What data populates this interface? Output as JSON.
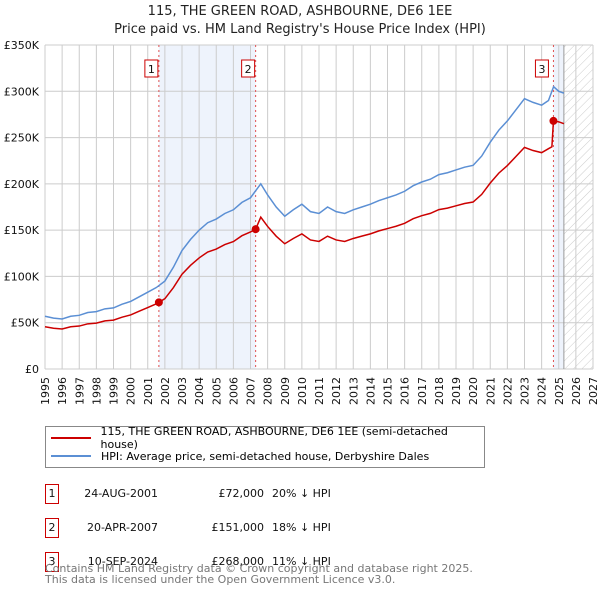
{
  "title": "115, THE GREEN ROAD, ASHBOURNE, DE6 1EE",
  "subtitle": "Price paid vs. HM Land Registry's House Price Index (HPI)",
  "chart_data": {
    "type": "line",
    "ylim": [
      0,
      350000
    ],
    "xlim": [
      1995,
      2027
    ],
    "yticks": [
      {
        "v": 0,
        "label": "£0"
      },
      {
        "v": 50000,
        "label": "£50K"
      },
      {
        "v": 100000,
        "label": "£100K"
      },
      {
        "v": 150000,
        "label": "£150K"
      },
      {
        "v": 200000,
        "label": "£200K"
      },
      {
        "v": 250000,
        "label": "£250K"
      },
      {
        "v": 300000,
        "label": "£300K"
      },
      {
        "v": 350000,
        "label": "£350K"
      }
    ],
    "xticks": [
      "1995",
      "1996",
      "1997",
      "1998",
      "1999",
      "2000",
      "2001",
      "2002",
      "2003",
      "2004",
      "2005",
      "2006",
      "2007",
      "2008",
      "2009",
      "2010",
      "2011",
      "2012",
      "2013",
      "2014",
      "2015",
      "2016",
      "2017",
      "2018",
      "2019",
      "2020",
      "2021",
      "2022",
      "2023",
      "2024",
      "2025",
      "2026",
      "2027"
    ],
    "forecast_start": 2025.3,
    "series": [
      {
        "name": "115, THE GREEN ROAD, ASHBOURNE, DE6 1EE (semi-detached house)",
        "color": "#cc0000",
        "x": [
          1995,
          1995.5,
          1996,
          1996.5,
          1997,
          1997.5,
          1998,
          1998.5,
          1999,
          1999.5,
          2000,
          2000.5,
          2001,
          2001.5,
          2001.65,
          2002,
          2002.5,
          2003,
          2003.5,
          2004,
          2004.5,
          2005,
          2005.5,
          2006,
          2006.5,
          2007,
          2007.3,
          2007.6,
          2008,
          2008.5,
          2009,
          2009.5,
          2010,
          2010.5,
          2011,
          2011.5,
          2012,
          2012.5,
          2013,
          2013.5,
          2014,
          2014.5,
          2015,
          2015.5,
          2016,
          2016.5,
          2017,
          2017.5,
          2018,
          2018.5,
          2019,
          2019.5,
          2020,
          2020.5,
          2021,
          2021.5,
          2022,
          2022.5,
          2023,
          2023.5,
          2024,
          2024.4,
          2024.6,
          2024.69,
          2025,
          2025.3
        ],
        "y": [
          45600,
          44000,
          43200,
          45600,
          46400,
          48800,
          49600,
          52000,
          52800,
          56000,
          58400,
          62400,
          66400,
          70400,
          72000,
          76000,
          88000,
          102400,
          112000,
          120000,
          126400,
          129600,
          134400,
          137600,
          144000,
          148000,
          151000,
          164000,
          154000,
          143500,
          135300,
          141000,
          146000,
          139400,
          137800,
          143500,
          139400,
          137800,
          141000,
          143500,
          146000,
          149200,
          151700,
          154200,
          157400,
          162400,
          165600,
          168100,
          172200,
          173800,
          176300,
          178800,
          180400,
          188600,
          200900,
          211600,
          219800,
          229600,
          239400,
          236000,
          233700,
          238000,
          240000,
          268000,
          267000,
          265000
        ]
      },
      {
        "name": "HPI: Average price, semi-detached house, Derbyshire Dales",
        "color": "#5b8fd4",
        "x": [
          1995,
          1995.5,
          1996,
          1996.5,
          1997,
          1997.5,
          1998,
          1998.5,
          1999,
          1999.5,
          2000,
          2000.5,
          2001,
          2001.5,
          2002,
          2002.5,
          2003,
          2003.5,
          2004,
          2004.5,
          2005,
          2005.5,
          2006,
          2006.5,
          2007,
          2007.6,
          2008,
          2008.5,
          2009,
          2009.5,
          2010,
          2010.5,
          2011,
          2011.5,
          2012,
          2012.5,
          2013,
          2013.5,
          2014,
          2014.5,
          2015,
          2015.5,
          2016,
          2016.5,
          2017,
          2017.5,
          2018,
          2018.5,
          2019,
          2019.5,
          2020,
          2020.5,
          2021,
          2021.5,
          2022,
          2022.5,
          2023,
          2023.5,
          2024,
          2024.4,
          2024.7,
          2025,
          2025.3
        ],
        "y": [
          57000,
          55000,
          54000,
          57000,
          58000,
          61000,
          62000,
          65000,
          66000,
          70000,
          73000,
          78000,
          83000,
          88000,
          95000,
          110000,
          128000,
          140000,
          150000,
          158000,
          162000,
          168000,
          172000,
          180000,
          185000,
          200000,
          188000,
          175000,
          165000,
          172000,
          178000,
          170000,
          168000,
          175000,
          170000,
          168000,
          172000,
          175000,
          178000,
          182000,
          185000,
          188000,
          192000,
          198000,
          202000,
          205000,
          210000,
          212000,
          215000,
          218000,
          220000,
          230000,
          245000,
          258000,
          268000,
          280000,
          292000,
          288000,
          285000,
          290000,
          305000,
          300000,
          298000
        ]
      }
    ],
    "sales": [
      {
        "n": "1",
        "x": 2001.65,
        "y": 72000,
        "date": "24-AUG-2001",
        "price": "£72,000",
        "hpi": "20% ↓ HPI"
      },
      {
        "n": "2",
        "x": 2007.3,
        "y": 151000,
        "date": "20-APR-2007",
        "price": "£151,000",
        "hpi": "18% ↓ HPI"
      },
      {
        "n": "3",
        "x": 2024.69,
        "y": 268000,
        "date": "10-SEP-2024",
        "price": "£268,000",
        "hpi": "11% ↓ HPI"
      }
    ]
  },
  "footer": [
    "Contains HM Land Registry data © Crown copyright and database right 2025.",
    "This data is licensed under the Open Government Licence v3.0."
  ]
}
